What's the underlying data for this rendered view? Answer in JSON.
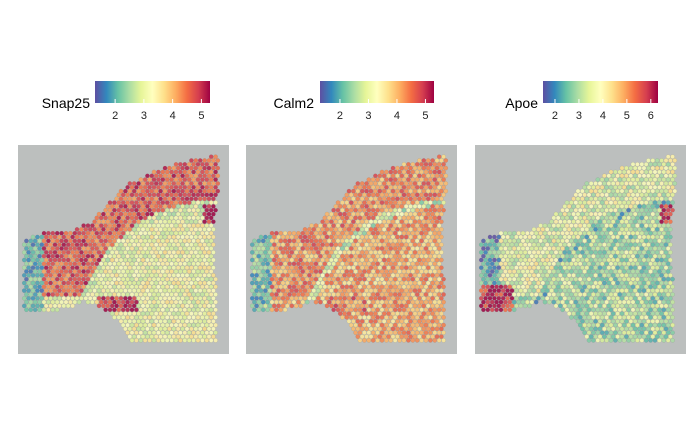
{
  "chart_data": [
    {
      "type": "heatmap",
      "title": "",
      "gene": "Snap25",
      "legend": {
        "title": "Snap25",
        "ticks": [
          2,
          3,
          4,
          5
        ],
        "range": [
          1.3,
          5.3
        ],
        "placement": "top"
      },
      "pattern": {
        "cortex": 4.7,
        "striatum": 3.2,
        "olfactory": 2.0,
        "tract": 3.0,
        "band": 5.1,
        "noise": 0.55
      }
    },
    {
      "type": "heatmap",
      "title": "",
      "gene": "Calm2",
      "legend": {
        "title": "Calm2",
        "ticks": [
          2,
          3,
          4,
          5
        ],
        "range": [
          1.3,
          5.3
        ],
        "placement": "top"
      },
      "pattern": {
        "cortex": 4.3,
        "striatum": 4.1,
        "olfactory": 2.2,
        "tract": 2.8,
        "band": 4.4,
        "noise": 0.6
      }
    },
    {
      "type": "heatmap",
      "title": "",
      "gene": "Apoe",
      "legend": {
        "title": "Apoe",
        "ticks": [
          2,
          3,
          4,
          5,
          6
        ],
        "range": [
          1.5,
          6.3
        ],
        "placement": "top"
      },
      "pattern": {
        "cortex": 3.6,
        "striatum": 3.0,
        "olfactory": 2.2,
        "tract": 2.6,
        "band": 6.1,
        "noise": 0.8
      }
    }
  ],
  "colors": {
    "background": "#bcbfbe",
    "palette": [
      "#5e4fa2",
      "#3288bd",
      "#66c2a5",
      "#abdda4",
      "#e6f598",
      "#ffffbf",
      "#fee08b",
      "#fdae61",
      "#f46d43",
      "#d53e4f",
      "#9e0142"
    ]
  }
}
